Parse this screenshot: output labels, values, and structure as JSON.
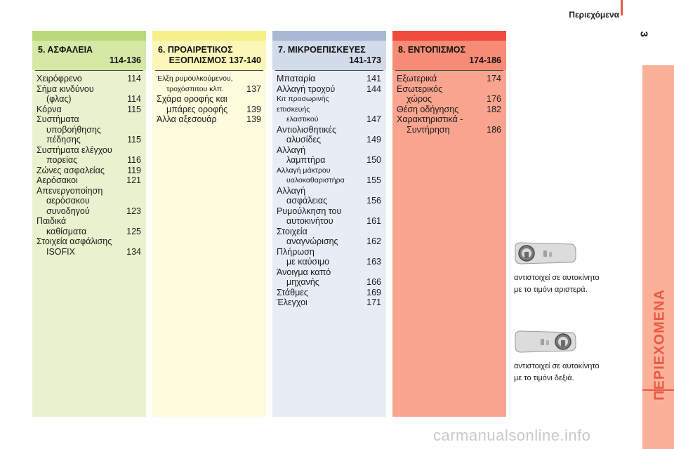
{
  "header": {
    "title": "Περιεχόμενα",
    "page_number": "3",
    "accent": "#e85a44"
  },
  "side_tab": {
    "label": "ΠΕΡΙΕΧΟΜΕΝΑ",
    "color": "#fbb199",
    "label_color": "#e85a44"
  },
  "columns": [
    {
      "title": "5. ΑΣΦΑΛΕΙΑ",
      "pages": "114-136",
      "top_color": "#b9d97b",
      "head_color": "#d6e8a6",
      "body_color": "#e9f2cf",
      "entries": [
        {
          "l1": "Χειρόφρενο",
          "l2": "",
          "pg": "114"
        },
        {
          "l1": "Σήμα κινδύνου",
          "l2": "(φλας)",
          "pg": "114"
        },
        {
          "l1": "Κόρνα",
          "l2": "",
          "pg": "115"
        },
        {
          "l1": "Συστήματα",
          "l2": "υποβοήθησης",
          "pg": ""
        },
        {
          "l1": "",
          "l2": "πέδησης",
          "pg": "115"
        },
        {
          "l1": "Συστήματα ελέγχου",
          "l2": "πορείας",
          "pg": "116"
        },
        {
          "l1": "Ζώνες ασφαλείας",
          "l2": "",
          "pg": "119"
        },
        {
          "l1": "Αερόσακοι",
          "l2": "",
          "pg": "121"
        },
        {
          "l1": "Απενεργοποίηση",
          "l2": "αερόσακου",
          "pg": ""
        },
        {
          "l1": "",
          "l2": "συνοδηγού",
          "pg": "123"
        },
        {
          "l1": "Παιδικά",
          "l2": "καθίσματα",
          "pg": "125"
        },
        {
          "l1": "Στοιχεία ασφάλισης",
          "l2": "ISOFIX",
          "pg": "134"
        }
      ]
    },
    {
      "title": "6. ΠΡΟΑΙΡΕΤΙΚΟΣ",
      "pages": "ΕΞΟΠΛΙΣΜΟΣ 137-140",
      "top_color": "#f4f08a",
      "head_color": "#fbf7b8",
      "body_color": "#fefcdc",
      "entries": [
        {
          "l1": "Έλξη ρυμουλκούμενου,",
          "l2": "τροχόσπιτου κλπ.",
          "pg": "137",
          "small": true
        },
        {
          "l1": "Σχάρα οροφής και",
          "l2": "μπάρες οροφής",
          "pg": "139"
        },
        {
          "l1": "Άλλα αξεσουάρ",
          "l2": "",
          "pg": "139"
        }
      ]
    },
    {
      "title": "7. ΜΙΚΡΟΕΠΙΣΚΕΥΕΣ",
      "pages": "141-173",
      "top_color": "#a9b9d4",
      "head_color": "#d2dbea",
      "body_color": "#e8edf5",
      "entries": [
        {
          "l1": "Μπαταρία",
          "l2": "",
          "pg": "141"
        },
        {
          "l1": "Αλλαγή τροχού",
          "l2": "",
          "pg": "144"
        },
        {
          "l1": "Κιτ προσωρινής επισκευής",
          "l2": "ελαστικού",
          "pg": "147",
          "small": true
        },
        {
          "l1": "Αντιολισθητικές",
          "l2": "αλυσίδες",
          "pg": "149"
        },
        {
          "l1": "Αλλαγή",
          "l2": "λαμπτήρα",
          "pg": "150"
        },
        {
          "l1": "Αλλαγή μάκτρου",
          "l2": "υαλοκαθαριστήρα",
          "pg": "155",
          "small": true
        },
        {
          "l1": "Αλλαγή",
          "l2": "ασφάλειας",
          "pg": "156"
        },
        {
          "l1": "Ρυμούλκηση του",
          "l2": "αυτοκινήτου",
          "pg": "161"
        },
        {
          "l1": "Στοιχεία",
          "l2": "αναγνώρισης",
          "pg": "162"
        },
        {
          "l1": "Πλήρωση",
          "l2": "με καύσιμο",
          "pg": "163"
        },
        {
          "l1": "Άνοιγμα καπό",
          "l2": "μηχανής",
          "pg": "166"
        },
        {
          "l1": "Στάθμες",
          "l2": "",
          "pg": "169"
        },
        {
          "l1": "Έλεγχοι",
          "l2": "",
          "pg": "171"
        }
      ]
    },
    {
      "title": "8. ΕΝΤΟΠΙΣΜΟΣ",
      "pages": "174-186",
      "top_color": "#f04a3e",
      "head_color": "#f68b76",
      "body_color": "#f9a48f",
      "entries": [
        {
          "l1": "Εξωτερικά",
          "l2": "",
          "pg": "174"
        },
        {
          "l1": "Εσωτερικός",
          "l2": "χώρος",
          "pg": "176"
        },
        {
          "l1": "Θέση οδήγησης",
          "l2": "",
          "pg": "182"
        },
        {
          "l1": "Χαρακτηριστικά -",
          "l2": "Συντήρηση",
          "pg": "186"
        }
      ]
    }
  ],
  "notes": {
    "left_hand_drive": [
      "αντιστοιχεί σε αυτοκίνητο",
      "με το τιμόνι αριστερά."
    ],
    "right_hand_drive": [
      "αντιστοιχεί σε αυτοκίνητο",
      "με το τιμόνι δεξιά."
    ]
  },
  "icons": {
    "lhd": "left-hand-drive-car-icon",
    "rhd": "right-hand-drive-car-icon"
  },
  "watermark": "carmanualsonline.info"
}
